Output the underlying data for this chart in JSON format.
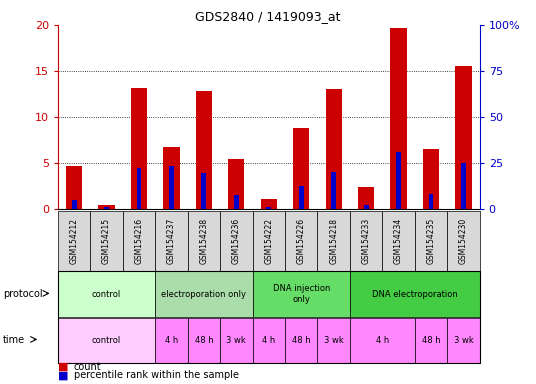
{
  "title": "GDS2840 / 1419093_at",
  "samples": [
    "GSM154212",
    "GSM154215",
    "GSM154216",
    "GSM154237",
    "GSM154238",
    "GSM154236",
    "GSM154222",
    "GSM154226",
    "GSM154218",
    "GSM154233",
    "GSM154234",
    "GSM154235",
    "GSM154230"
  ],
  "count_values": [
    4.7,
    0.5,
    13.2,
    6.8,
    12.8,
    5.5,
    1.1,
    8.8,
    13.1,
    2.4,
    19.7,
    6.5,
    15.6
  ],
  "percentile_values": [
    5.0,
    1.5,
    22.5,
    23.5,
    19.5,
    7.5,
    1.5,
    12.5,
    20.0,
    2.5,
    31.0,
    8.5,
    25.0
  ],
  "ylim_left": [
    0,
    20
  ],
  "ylim_right": [
    0,
    100
  ],
  "yticks_left": [
    0,
    5,
    10,
    15,
    20
  ],
  "yticks_right": [
    0,
    25,
    50,
    75,
    100
  ],
  "ytick_labels_left": [
    "0",
    "5",
    "10",
    "15",
    "20"
  ],
  "ytick_labels_right": [
    "0",
    "25",
    "50",
    "75",
    "100%"
  ],
  "bar_color_count": "#cc0000",
  "bar_color_percentile": "#0000cc",
  "protocol_groups": [
    {
      "label": "control",
      "start": 0,
      "end": 3,
      "color": "#ccffcc"
    },
    {
      "label": "electroporation only",
      "start": 3,
      "end": 6,
      "color": "#aaddaa"
    },
    {
      "label": "DNA injection\nonly",
      "start": 6,
      "end": 9,
      "color": "#66dd66"
    },
    {
      "label": "DNA electroporation",
      "start": 9,
      "end": 13,
      "color": "#44cc44"
    }
  ],
  "time_groups": [
    {
      "label": "control",
      "start": 0,
      "end": 3,
      "light": true
    },
    {
      "label": "4 h",
      "start": 3,
      "end": 4,
      "light": false
    },
    {
      "label": "48 h",
      "start": 4,
      "end": 5,
      "light": false
    },
    {
      "label": "3 wk",
      "start": 5,
      "end": 6,
      "light": false
    },
    {
      "label": "4 h",
      "start": 6,
      "end": 7,
      "light": false
    },
    {
      "label": "48 h",
      "start": 7,
      "end": 8,
      "light": false
    },
    {
      "label": "3 wk",
      "start": 8,
      "end": 9,
      "light": false
    },
    {
      "label": "4 h",
      "start": 9,
      "end": 11,
      "light": false
    },
    {
      "label": "48 h",
      "start": 11,
      "end": 12,
      "light": false
    },
    {
      "label": "3 wk",
      "start": 12,
      "end": 13,
      "light": false
    }
  ],
  "legend_count_label": "count",
  "legend_percentile_label": "percentile rank within the sample",
  "xlabel_protocol": "protocol",
  "xlabel_time": "time",
  "bg_color": "#ffffff",
  "tick_color_left": "#cc0000",
  "tick_color_right": "#0000cc",
  "time_color_light": "#ffccff",
  "time_color_dark": "#ff88ff",
  "sample_bg": "#d8d8d8"
}
